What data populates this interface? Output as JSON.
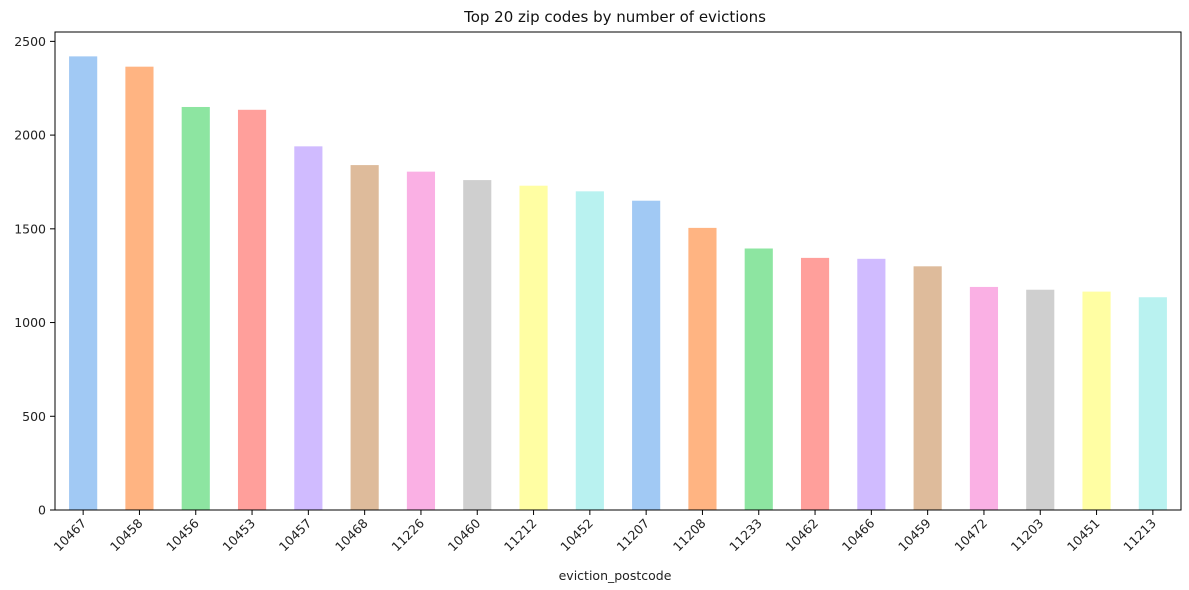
{
  "chart_data": {
    "type": "bar",
    "title": "Top 20 zip codes by number of evictions",
    "xlabel": "eviction_postcode",
    "ylabel": "",
    "ylim": [
      0,
      2550
    ],
    "yticks": [
      0,
      500,
      1000,
      1500,
      2000,
      2500
    ],
    "grid": false,
    "legend": "none",
    "categories": [
      "10467",
      "10458",
      "10456",
      "10453",
      "10457",
      "10468",
      "11226",
      "10460",
      "11212",
      "10452",
      "11207",
      "11208",
      "11233",
      "10462",
      "10466",
      "10459",
      "10472",
      "11203",
      "10451",
      "11213"
    ],
    "values": [
      2420,
      2365,
      2150,
      2135,
      1940,
      1840,
      1805,
      1760,
      1730,
      1700,
      1650,
      1505,
      1395,
      1345,
      1340,
      1300,
      1190,
      1175,
      1165,
      1135
    ],
    "colors": [
      "#a1c9f4",
      "#ffb482",
      "#8de5a1",
      "#ff9f9b",
      "#d0bbff",
      "#debb9b",
      "#fab0e4",
      "#cfcfcf",
      "#fffea3",
      "#b9f2f0"
    ]
  }
}
